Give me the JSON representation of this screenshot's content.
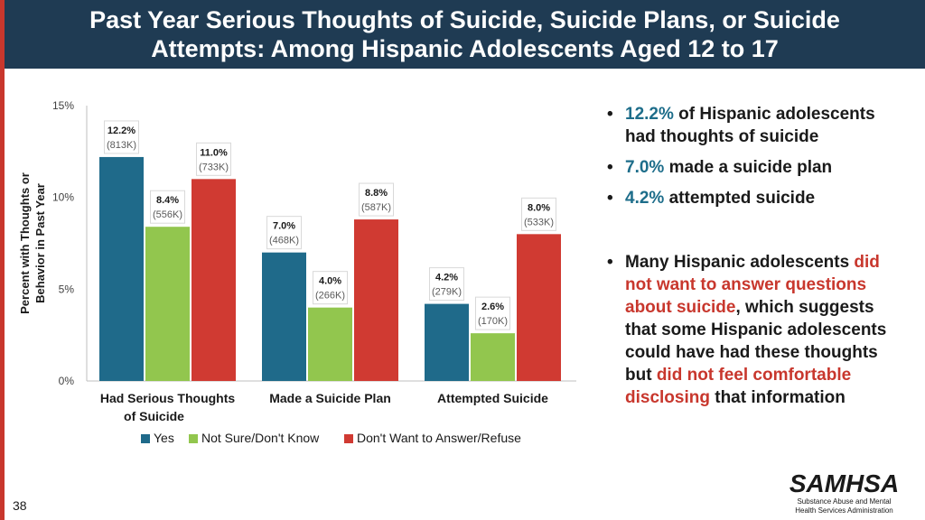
{
  "header": {
    "title": "Past Year Serious Thoughts of Suicide, Suicide Plans, or Suicide Attempts: Among Hispanic Adolescents Aged 12 to 17"
  },
  "colors": {
    "header_bg": "#1f3b53",
    "accent_red": "#c8372d",
    "yes": "#1f6a8a",
    "not_sure": "#92c64e",
    "refuse": "#d03a32"
  },
  "chart_data": {
    "type": "bar",
    "ylabel": "Percent with Thoughts or Behavior in Past Year",
    "ylim": [
      0,
      15
    ],
    "yticks": [
      "0%",
      "5%",
      "10%",
      "15%"
    ],
    "categories": [
      "Had Serious Thoughts of Suicide",
      "Made a Suicide Plan",
      "Attempted Suicide"
    ],
    "series": [
      {
        "name": "Yes",
        "values": [
          12.2,
          7.0,
          4.2
        ],
        "labels": [
          "12.2%",
          "7.0%",
          "4.2%"
        ],
        "counts": [
          "(813K)",
          "(468K)",
          "(279K)"
        ]
      },
      {
        "name": "Not Sure/Don't Know",
        "values": [
          8.4,
          4.0,
          2.6
        ],
        "labels": [
          "8.4%",
          "4.0%",
          "2.6%"
        ],
        "counts": [
          "(556K)",
          "(266K)",
          "(170K)"
        ]
      },
      {
        "name": "Don't Want to Answer/Refuse",
        "values": [
          11.0,
          8.8,
          8.0
        ],
        "labels": [
          "11.0%",
          "8.8%",
          "8.0%"
        ],
        "counts": [
          "(733K)",
          "(587K)",
          "(533K)"
        ]
      }
    ],
    "legend_position": "bottom",
    "grid": false
  },
  "bullets": {
    "b1": {
      "value": "12.2%",
      "text": " of Hispanic adolescents had thoughts of suicide"
    },
    "b2": {
      "value": "7.0%",
      "text": " made a suicide plan"
    },
    "b3": {
      "value": "4.2%",
      "text": " attempted suicide"
    },
    "b4": {
      "part1": "Many Hispanic adolescents ",
      "red1": "did not want to answer questions about suicide",
      "part2": ", which suggests that some Hispanic adolescents could have had these thoughts but ",
      "red2": "did not feel comfortable disclosing",
      "part3": " that information"
    }
  },
  "footer": {
    "page_number": "38",
    "logo_text": "SAMHSA",
    "logo_subtitle": "Substance Abuse and Mental Health Services Administration"
  }
}
